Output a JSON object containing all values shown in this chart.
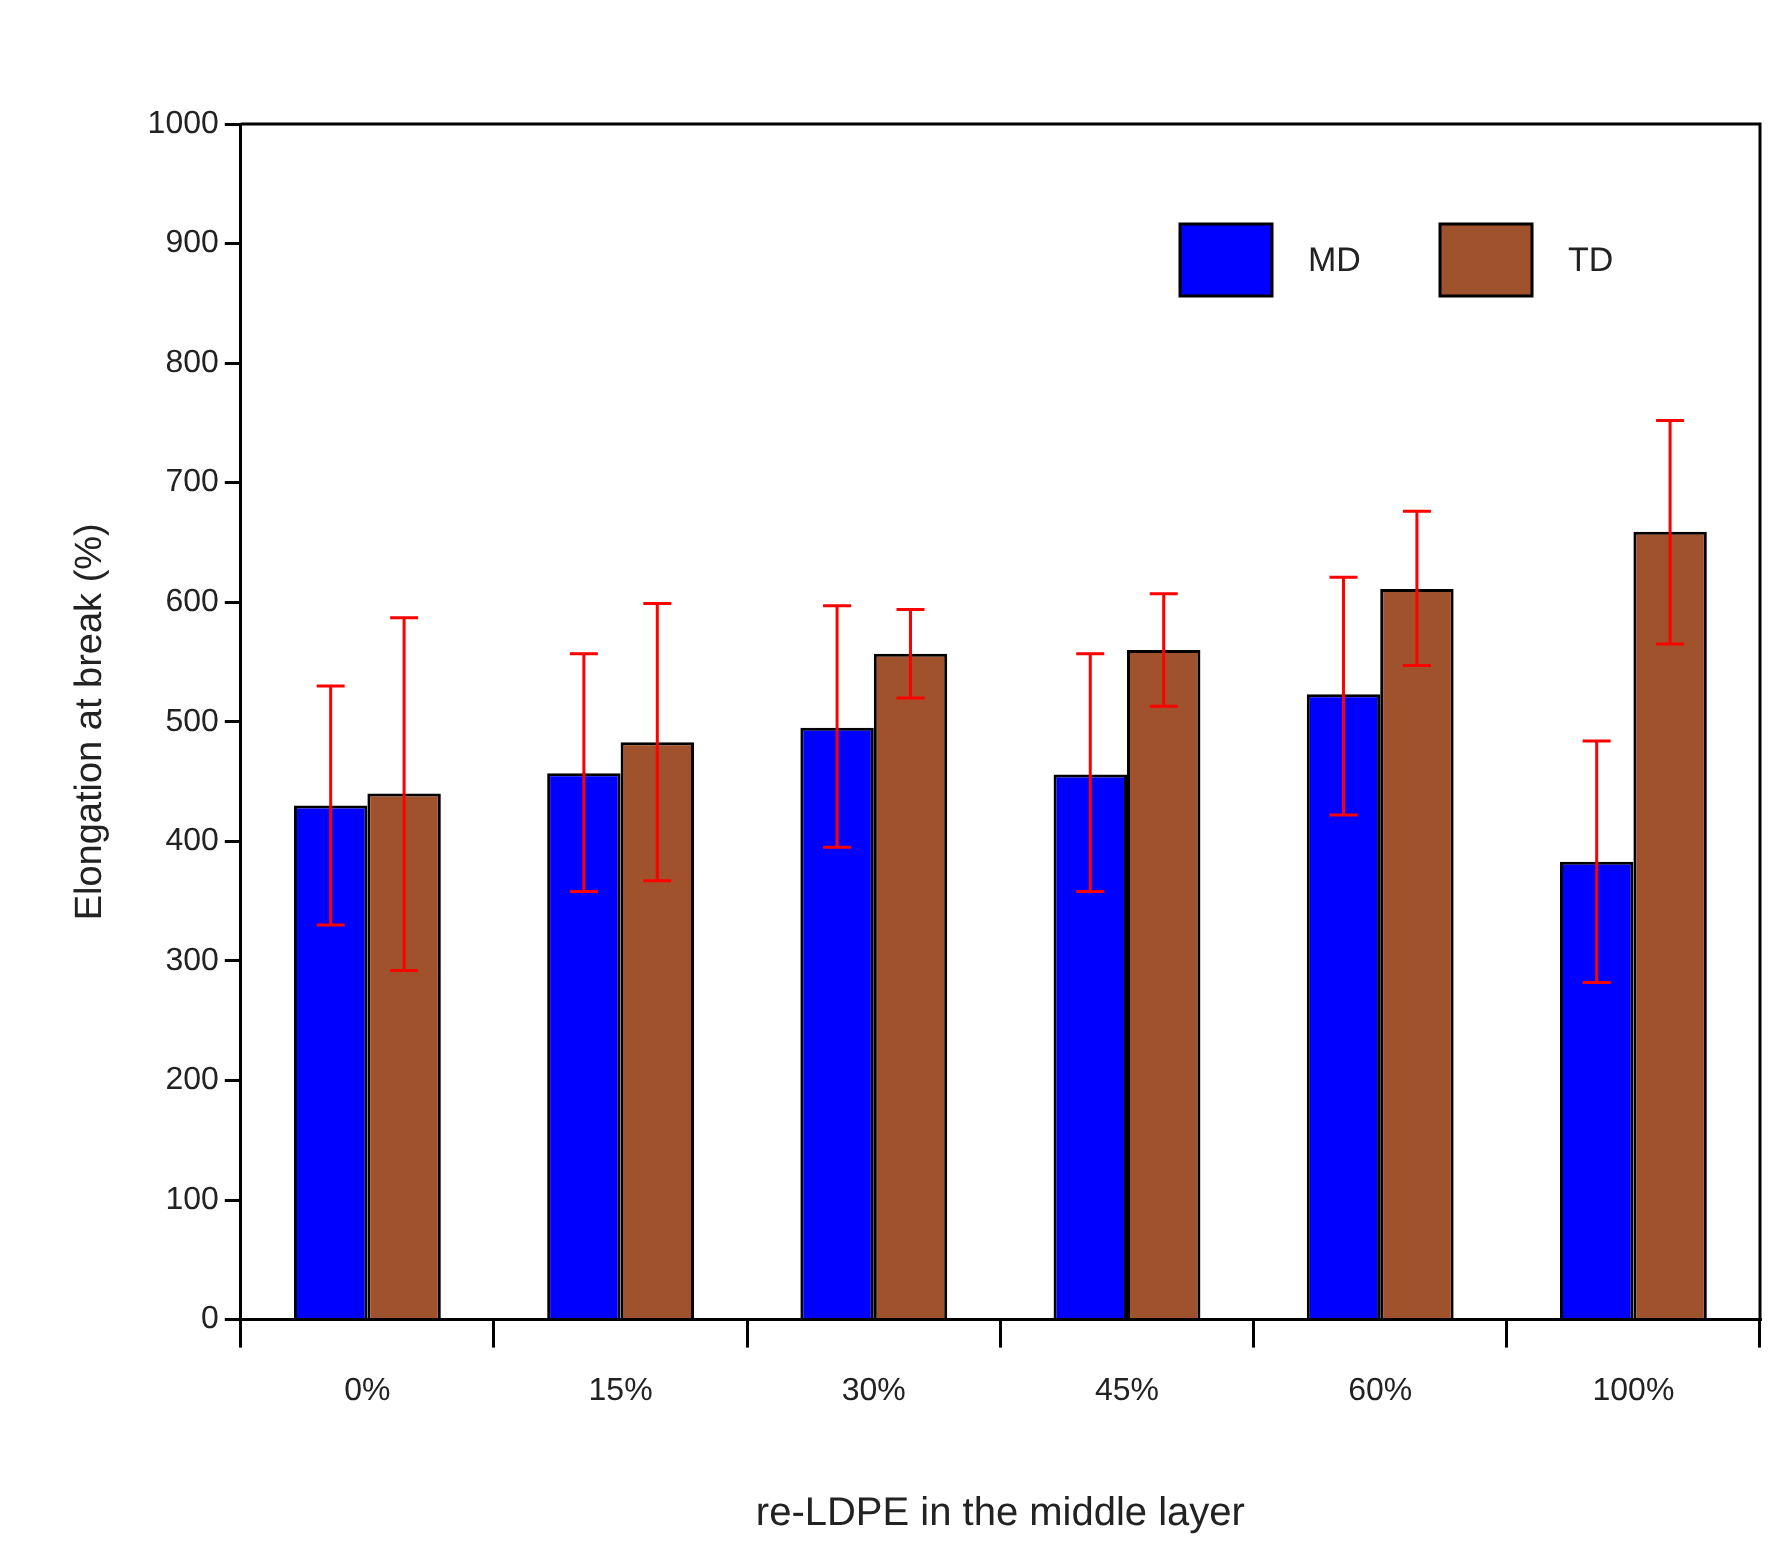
{
  "chart_data": {
    "type": "bar",
    "xlabel": "re-LDPE in the middle layer",
    "ylabel": "Elongation at break (%)",
    "categories": [
      "0%",
      "15%",
      "30%",
      "45%",
      "60%",
      "100%"
    ],
    "series": [
      {
        "name": "MD",
        "color": "#0000ff",
        "values": [
          430,
          457,
          495,
          456,
          523,
          383
        ],
        "errors": [
          [
            330,
            530
          ],
          [
            358,
            557
          ],
          [
            395,
            597
          ],
          [
            358,
            557
          ],
          [
            422,
            621
          ],
          [
            282,
            484
          ]
        ]
      },
      {
        "name": "TD",
        "color": "#a0522d",
        "values": [
          440,
          483,
          557,
          560,
          611,
          659
        ],
        "errors": [
          [
            292,
            587
          ],
          [
            367,
            599
          ],
          [
            520,
            594
          ],
          [
            513,
            607
          ],
          [
            547,
            676
          ],
          [
            565,
            752
          ]
        ]
      }
    ],
    "ylim": [
      0,
      1000
    ],
    "yticks": [
      0,
      100,
      200,
      300,
      400,
      500,
      600,
      700,
      800,
      900,
      1000
    ],
    "grid": false,
    "legend": "top right"
  }
}
